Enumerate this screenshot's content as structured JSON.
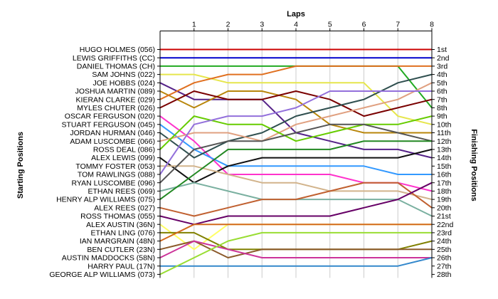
{
  "chart_data": {
    "type": "line",
    "title": "Laps",
    "ylabel_left": "Starting Positions",
    "ylabel_right": "Finishing Positions",
    "x": [
      0,
      1,
      2,
      3,
      4,
      5,
      6,
      7,
      8
    ],
    "x_tick_labels": [
      "1",
      "2",
      "3",
      "4",
      "5",
      "6",
      "7",
      "8"
    ],
    "start_labels": [
      "HUGO HOLMES (056)",
      "LEWIS GRIFFITHS (CC)",
      "DANIEL THOMAS (CH)",
      "SAM JOHNS (022)",
      "JOE HOBBS (024)",
      "JOSHUA MARTIN (089)",
      "KIERAN CLARKE (029)",
      "MYLES CHUTER (026)",
      "OSCAR FERGUSON (020)",
      "STUART FERGUSON (045)",
      "JORDAN HURMAN (046)",
      "ADAM LUSCOMBE (066)",
      "ROSS DEAL (086)",
      "ALEX LEWIS (099)",
      "TOMMY FOSTER (053)",
      "TOM RAWLINGS (088)",
      "RYAN LUSCOMBE (096)",
      "ETHAN REES (069)",
      "HENRY ALP WILLIAMS (075)",
      "ALEX REES (027)",
      "ROSS THOMAS (055)",
      "ALEX AUSTIN (36N)",
      "ETHAN LING (076)",
      "IAN MARGRAIN (48N)",
      "BEN CUTLER (23N)",
      "AUSTIN MADDOCKS (58N)",
      "HARRY PAUL (17N)",
      "GEORGE ALP WILLIAMS (073)"
    ],
    "finish_labels": [
      "1st",
      "2nd",
      "3rd",
      "4th",
      "5th",
      "6th",
      "7th",
      "8th",
      "9th",
      "10th",
      "11th",
      "12th",
      "13th",
      "14th",
      "15th",
      "16th",
      "17th",
      "18th",
      "19th",
      "20th",
      "21st",
      "22nd",
      "23rd",
      "24th",
      "25th",
      "26th",
      "27th",
      "28th"
    ],
    "series": [
      {
        "color": "#cc0000",
        "values": [
          1,
          1,
          1,
          1,
          1,
          1,
          1,
          1,
          1
        ]
      },
      {
        "color": "#0000cc",
        "values": [
          2,
          2,
          2,
          2,
          2,
          2,
          2,
          2,
          2
        ]
      },
      {
        "color": "#22aa22",
        "values": [
          3,
          3,
          3,
          3,
          3,
          3,
          3,
          3,
          8
        ]
      },
      {
        "color": "#e6e64d",
        "values": [
          4,
          4,
          5,
          5,
          5,
          5,
          5,
          9,
          10
        ]
      },
      {
        "color": "#552288",
        "values": [
          5,
          7,
          7,
          7,
          11,
          12,
          13,
          13,
          14
        ]
      },
      {
        "color": "#b8860b",
        "values": [
          6,
          8,
          6,
          6,
          7,
          10,
          11,
          11,
          11
        ]
      },
      {
        "color": "#e07020",
        "values": [
          7,
          5,
          4,
          4,
          3,
          3,
          3,
          3,
          3
        ]
      },
      {
        "color": "#7a0000",
        "values": [
          8,
          6,
          7,
          7,
          6,
          7,
          9,
          8,
          7
        ]
      },
      {
        "color": "#ff33cc",
        "values": [
          9,
          12,
          16,
          16,
          16,
          16,
          17,
          17,
          18
        ]
      },
      {
        "color": "#3399ff",
        "values": [
          10,
          13,
          15,
          15,
          15,
          15,
          15,
          16,
          16
        ]
      },
      {
        "color": "#2f4f4f",
        "values": [
          11,
          14,
          12,
          11,
          9,
          8,
          7,
          5,
          4
        ]
      },
      {
        "color": "#e0a080",
        "values": [
          12,
          11,
          11,
          12,
          10,
          9,
          8,
          7,
          5
        ]
      },
      {
        "color": "#66cc00",
        "values": [
          13,
          9,
          10,
          10,
          12,
          11,
          10,
          10,
          9
        ]
      },
      {
        "color": "#111111",
        "values": [
          14,
          17,
          15,
          14,
          14,
          14,
          14,
          14,
          13
        ]
      },
      {
        "color": "#d2b48c",
        "values": [
          15,
          15,
          16,
          17,
          17,
          18,
          18,
          18,
          19
        ]
      },
      {
        "color": "#9370db",
        "values": [
          16,
          10,
          9,
          9,
          8,
          6,
          6,
          6,
          6
        ]
      },
      {
        "color": "#555555",
        "values": [
          17,
          13,
          12,
          12,
          11,
          10,
          10,
          11,
          12
        ]
      },
      {
        "color": "#7ab0a0",
        "values": [
          18,
          17,
          18,
          19,
          19,
          19,
          19,
          19,
          21
        ]
      },
      {
        "color": "#228822",
        "values": [
          19,
          16,
          13,
          13,
          13,
          13,
          12,
          12,
          12
        ]
      },
      {
        "color": "#c06030",
        "values": [
          20,
          21,
          20,
          19,
          19,
          18,
          17,
          17,
          20
        ]
      },
      {
        "color": "#660066",
        "values": [
          21,
          22,
          21,
          21,
          21,
          21,
          20,
          19,
          17
        ]
      },
      {
        "color": "#ffff66",
        "values": [
          22,
          25,
          22,
          22,
          22,
          22,
          22,
          22,
          22
        ]
      },
      {
        "color": "#808000",
        "values": [
          23,
          23,
          25,
          25,
          25,
          25,
          25,
          25,
          24
        ]
      },
      {
        "color": "#d2691e",
        "values": [
          24,
          22,
          22,
          22,
          22,
          22,
          22,
          22,
          22
        ]
      },
      {
        "color": "#8b5a2b",
        "values": [
          25,
          24,
          26,
          25,
          25,
          25,
          25,
          25,
          25
        ]
      },
      {
        "color": "#cc3399",
        "values": [
          26,
          24,
          25,
          26,
          26,
          26,
          26,
          26,
          26
        ]
      },
      {
        "color": "#3388cc",
        "values": [
          27,
          27,
          27,
          27,
          27,
          27,
          27,
          27,
          26
        ]
      },
      {
        "color": "#99dd33",
        "values": [
          28,
          26,
          24,
          23,
          23,
          23,
          23,
          23,
          23
        ]
      }
    ]
  }
}
